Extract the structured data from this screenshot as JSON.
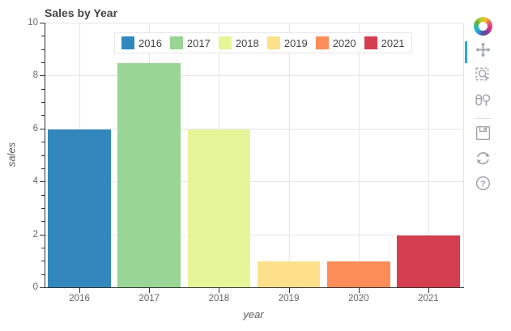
{
  "title": "Sales by Year",
  "chart_data": {
    "type": "bar",
    "title": "Sales by Year",
    "categories": [
      "2016",
      "2017",
      "2018",
      "2019",
      "2020",
      "2021"
    ],
    "values": [
      6,
      8.5,
      6,
      1,
      1,
      2
    ],
    "xlabel": "year",
    "ylabel": "sales",
    "ylim": [
      0,
      10
    ],
    "ytick_step": 2,
    "ytick_minor_step": 0.5,
    "grid": true,
    "legend_position": "top-center",
    "legend_entries": [
      "2016",
      "2017",
      "2018",
      "2019",
      "2020",
      "2021"
    ],
    "colors": [
      "#3288bd",
      "#99d594",
      "#e6f598",
      "#fee08b",
      "#fc8d59",
      "#d53e4f"
    ],
    "bar_width_fraction": 0.9
  },
  "colors": {
    "title_text": "#444444",
    "tick_label": "#666666",
    "axis_label": "#5c5c5c",
    "axis_line": "#333333",
    "grid_line": "#e5e5e5",
    "toolbar_icon": "#a1a5ab",
    "active_tool": "#26aae1",
    "legend_border": "#e6e6e6",
    "legend_background": "#ffffff"
  },
  "toolbar": {
    "logo_icon": "bokeh-logo",
    "tools": [
      {
        "id": "pan",
        "icon": "pan-icon",
        "active": true
      },
      {
        "id": "box-zoom",
        "icon": "box-zoom-icon",
        "active": false
      },
      {
        "id": "wheel-zoom",
        "icon": "wheel-zoom-icon",
        "active": false
      },
      {
        "id": "divider",
        "divider": true
      },
      {
        "id": "save",
        "icon": "save-icon",
        "active": false
      },
      {
        "id": "reset",
        "icon": "reset-icon",
        "active": false
      },
      {
        "id": "help",
        "icon": "help-icon",
        "active": false
      }
    ]
  }
}
